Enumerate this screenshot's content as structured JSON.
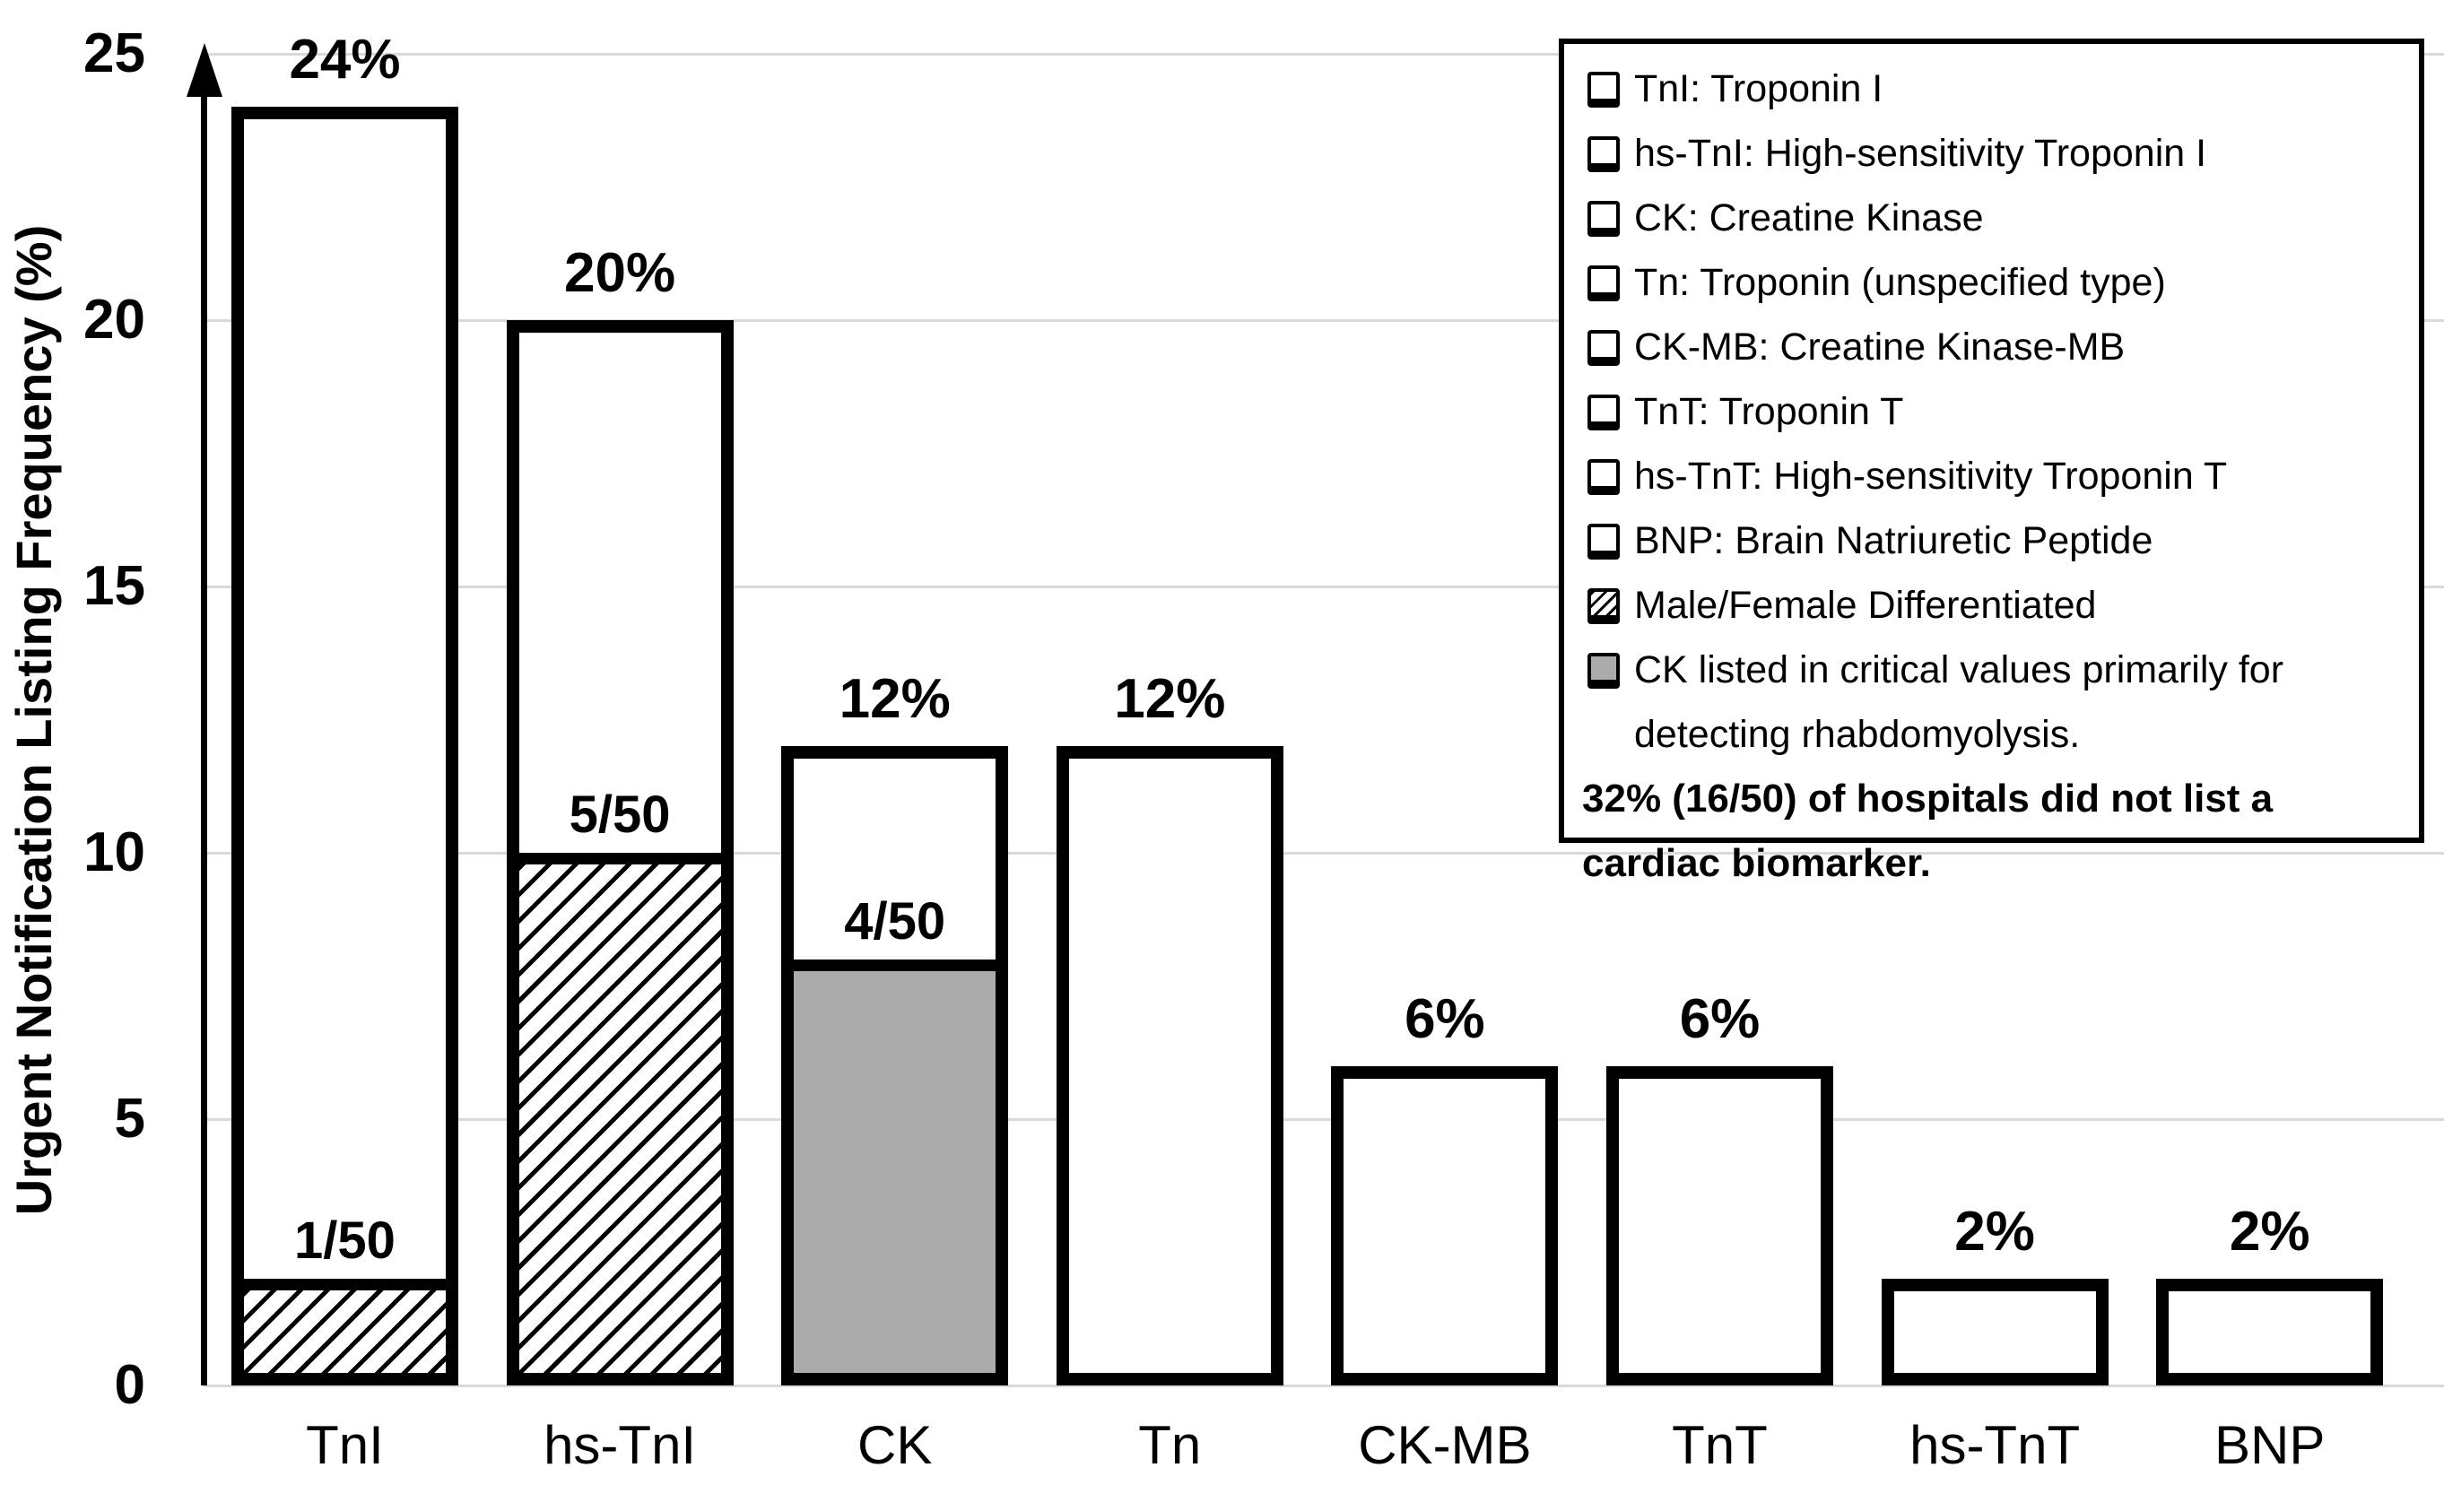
{
  "chart_data": {
    "type": "bar",
    "title": "",
    "xlabel": "",
    "ylabel": "Urgent Notification Listing Frequency (%)",
    "ylim": [
      0,
      25
    ],
    "yticks": [
      0,
      5,
      10,
      15,
      20,
      25
    ],
    "ytick_labels": [
      "0",
      "5",
      "10",
      "15",
      "20",
      "25"
    ],
    "grid": "horizontal",
    "legend_position": "top-right",
    "categories": [
      "TnI",
      "hs-TnI",
      "CK",
      "Tn",
      "CK-MB",
      "TnT",
      "hs-TnT",
      "BNP"
    ],
    "values": [
      24,
      20,
      12,
      12,
      6,
      6,
      2,
      2
    ],
    "bar_labels": [
      "24%",
      "20%",
      "12%",
      "12%",
      "6%",
      "6%",
      "2%",
      "2%"
    ],
    "bar_fill": "white",
    "segments": [
      {
        "category": "TnI",
        "style": "hatched",
        "value": 2,
        "label": "1/50"
      },
      {
        "category": "hs-TnI",
        "style": "hatched",
        "value": 10,
        "label": "5/50"
      },
      {
        "category": "CK",
        "style": "gray",
        "value": 8,
        "label": "4/50"
      }
    ]
  },
  "legend": {
    "items": [
      {
        "icon": "shadow-square-icon",
        "lines": [
          "TnI: Troponin I"
        ]
      },
      {
        "icon": "shadow-square-icon",
        "lines": [
          "hs-TnI: High-sensitivity Troponin I"
        ]
      },
      {
        "icon": "shadow-square-icon",
        "lines": [
          "CK: Creatine Kinase"
        ]
      },
      {
        "icon": "shadow-square-icon",
        "lines": [
          "Tn: Troponin (unspecified type)"
        ]
      },
      {
        "icon": "shadow-square-icon",
        "lines": [
          "CK-MB: Creatine Kinase-MB"
        ]
      },
      {
        "icon": "shadow-square-icon",
        "lines": [
          "TnT: Troponin T"
        ]
      },
      {
        "icon": "shadow-square-icon",
        "lines": [
          "hs-TnT: High-sensitivity Troponin T"
        ]
      },
      {
        "icon": "shadow-square-icon",
        "lines": [
          "BNP: Brain Natriuretic Peptide"
        ]
      },
      {
        "icon": "hatch-square-icon",
        "lines": [
          "Male/Female Differentiated"
        ]
      },
      {
        "icon": "gray-square-icon",
        "lines": [
          "CK listed in critical values primarily for",
          "detecting rhabdomyolysis."
        ]
      },
      {
        "icon": "none",
        "bold": true,
        "lines": [
          "32% (16/50) of hospitals did not list a",
          "cardiac biomarker."
        ]
      }
    ]
  },
  "colors": {
    "bar_border": "#000000",
    "gray_fill": "#ababab",
    "gridline": "#d9d9d9",
    "hatch_line": "#000000",
    "background": "#ffffff",
    "text": "#000000"
  }
}
